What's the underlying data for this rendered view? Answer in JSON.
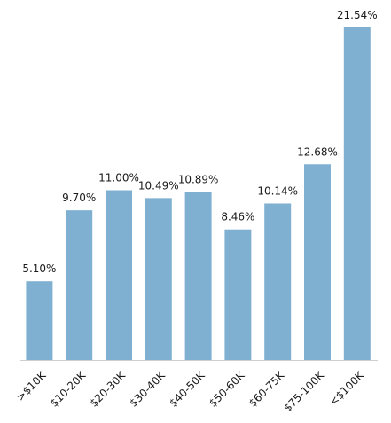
{
  "chart_data": {
    "type": "bar",
    "categories": [
      ">$10K",
      "$10-20K",
      "$20-30K",
      "$30-40K",
      "$40-50K",
      "$50-60K",
      "$60-75K",
      "$75-100K",
      "<$100K"
    ],
    "values": [
      5.1,
      9.7,
      11.0,
      10.49,
      10.89,
      8.46,
      10.14,
      12.68,
      21.54
    ],
    "value_labels": [
      "5.10%",
      "9.70%",
      "11.00%",
      "10.49%",
      "10.89%",
      "8.46%",
      "10.14%",
      "12.68%",
      "21.54%"
    ],
    "unit": "%",
    "title": "",
    "xlabel": "",
    "ylabel": "",
    "ylim": [
      0,
      21.54
    ],
    "grid": false,
    "bar_color": "#7fb0d2"
  }
}
